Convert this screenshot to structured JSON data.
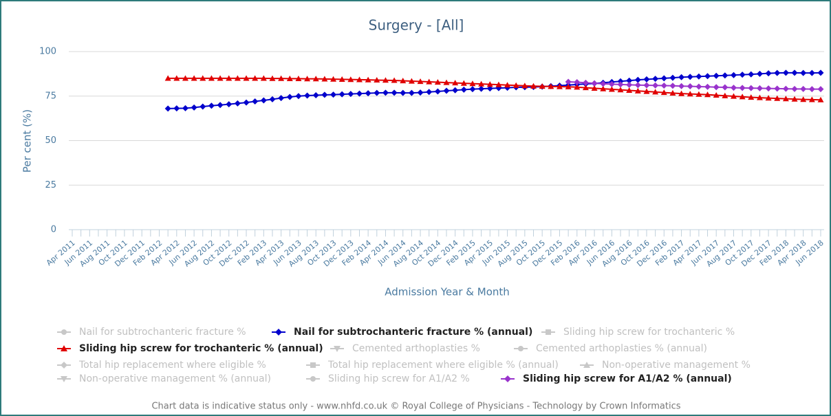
{
  "chart_data": {
    "type": "line",
    "title": "Surgery - [All]",
    "y_label": "Per cent (%)",
    "x_label": "Admission Year & Month",
    "footer": "Chart data is indicative status only - www.nhfd.co.uk © Royal College of Physicians - Technology by Crown Informatics",
    "ylim": [
      0,
      100
    ],
    "yticks": [
      0,
      25,
      50,
      75,
      100
    ],
    "grid": true,
    "categories": [
      "Apr 2011",
      null,
      "Jun 2011",
      null,
      "Aug 2011",
      null,
      "Oct 2011",
      null,
      "Dec 2011",
      null,
      "Feb 2012",
      null,
      "Apr 2012",
      null,
      "Jun 2012",
      null,
      "Aug 2012",
      null,
      "Oct 2012",
      null,
      "Dec 2012",
      null,
      "Feb 2013",
      null,
      "Apr 2013",
      null,
      "Jun 2013",
      null,
      "Aug 2013",
      null,
      "Oct 2013",
      null,
      "Dec 2013",
      null,
      "Feb 2014",
      null,
      "Apr 2014",
      null,
      "Jun 2014",
      null,
      "Aug 2014",
      null,
      "Oct 2014",
      null,
      "Dec 2014",
      null,
      "Feb 2015",
      null,
      "Apr 2015",
      null,
      "Jun 2015",
      null,
      "Aug 2015",
      null,
      "Oct 2015",
      null,
      "Dec 2015",
      null,
      "Feb 2016",
      null,
      "Apr 2016",
      null,
      "Jun 2016",
      null,
      "Aug 2016",
      null,
      "Oct 2016",
      null,
      "Dec 2016",
      null,
      "Feb 2017",
      null,
      "Apr 2017",
      null,
      "Jun 2017",
      null,
      "Aug 2017",
      null,
      "Oct 2017",
      null,
      "Dec 2017",
      null,
      "Feb 2018",
      null,
      "Apr 2018",
      null,
      "Jun 2018"
    ],
    "series": [
      {
        "name": "Nail for subtrochanteric fracture %",
        "color": "#c8c8c8",
        "marker": "circle",
        "visible": false
      },
      {
        "name": "Nail for subtrochanteric fracture % (annual)",
        "color": "#0000cc",
        "marker": "diamond",
        "visible": true,
        "values": [
          null,
          null,
          null,
          null,
          null,
          null,
          null,
          null,
          null,
          null,
          null,
          68.0,
          68.1,
          68.2,
          68.6,
          69.1,
          69.6,
          70.0,
          70.4,
          70.9,
          71.4,
          72.0,
          72.6,
          73.2,
          73.9,
          74.5,
          75.0,
          75.3,
          75.5,
          75.7,
          75.8,
          76.0,
          76.2,
          76.4,
          76.6,
          76.8,
          76.9,
          76.9,
          76.8,
          76.8,
          77.0,
          77.3,
          77.6,
          78.0,
          78.3,
          78.6,
          78.9,
          79.1,
          79.3,
          79.5,
          79.7,
          79.9,
          80.0,
          80.1,
          80.3,
          80.6,
          80.9,
          81.2,
          81.5,
          81.8,
          82.1,
          82.5,
          82.9,
          83.3,
          83.7,
          84.1,
          84.4,
          84.7,
          85.0,
          85.3,
          85.6,
          85.8,
          86.0,
          86.2,
          86.4,
          86.6,
          86.8,
          87.0,
          87.2,
          87.5,
          87.8,
          88.0,
          88.1,
          88.1,
          88.0,
          88.0,
          88.1
        ]
      },
      {
        "name": "Sliding hip screw for trochanteric %",
        "color": "#c8c8c8",
        "marker": "square",
        "visible": false
      },
      {
        "name": "Sliding hip screw for trochanteric % (annual)",
        "color": "#e00000",
        "marker": "triangle",
        "visible": true,
        "values": [
          null,
          null,
          null,
          null,
          null,
          null,
          null,
          null,
          null,
          null,
          null,
          85.0,
          85.0,
          85.0,
          85.0,
          85.0,
          85.0,
          85.0,
          85.0,
          85.0,
          85.0,
          85.0,
          85.0,
          84.9,
          84.9,
          84.8,
          84.8,
          84.7,
          84.7,
          84.6,
          84.5,
          84.4,
          84.3,
          84.2,
          84.1,
          84.0,
          83.9,
          83.8,
          83.6,
          83.4,
          83.2,
          83.0,
          82.8,
          82.6,
          82.4,
          82.2,
          82.0,
          81.8,
          81.6,
          81.4,
          81.2,
          81.0,
          80.8,
          80.6,
          80.5,
          80.4,
          80.3,
          80.2,
          80.0,
          79.7,
          79.4,
          79.1,
          78.8,
          78.5,
          78.2,
          77.9,
          77.6,
          77.3,
          77.0,
          76.7,
          76.4,
          76.2,
          76.0,
          75.8,
          75.5,
          75.2,
          74.9,
          74.6,
          74.3,
          74.1,
          73.9,
          73.7,
          73.5,
          73.3,
          73.1,
          73.0,
          72.9
        ]
      },
      {
        "name": "Cemented arthoplasties %",
        "color": "#c8c8c8",
        "marker": "triangle-down",
        "visible": false
      },
      {
        "name": "Cemented arthoplasties % (annual)",
        "color": "#c8c8c8",
        "marker": "circle",
        "visible": false
      },
      {
        "name": "Total hip replacement where eligible %",
        "color": "#c8c8c8",
        "marker": "diamond",
        "visible": false
      },
      {
        "name": "Total hip replacement where eligible % (annual)",
        "color": "#c8c8c8",
        "marker": "square",
        "visible": false
      },
      {
        "name": "Non-operative management %",
        "color": "#c8c8c8",
        "marker": "triangle",
        "visible": false
      },
      {
        "name": "Non-operative management % (annual)",
        "color": "#c8c8c8",
        "marker": "triangle-down",
        "visible": false
      },
      {
        "name": "Sliding hip screw for A1/A2 %",
        "color": "#c8c8c8",
        "marker": "circle",
        "visible": false
      },
      {
        "name": "Sliding hip screw for A1/A2 % (annual)",
        "color": "#9933cc",
        "marker": "diamond",
        "visible": true,
        "values": [
          null,
          null,
          null,
          null,
          null,
          null,
          null,
          null,
          null,
          null,
          null,
          null,
          null,
          null,
          null,
          null,
          null,
          null,
          null,
          null,
          null,
          null,
          null,
          null,
          null,
          null,
          null,
          null,
          null,
          null,
          null,
          null,
          null,
          null,
          null,
          null,
          null,
          null,
          null,
          null,
          null,
          null,
          null,
          null,
          null,
          null,
          null,
          null,
          null,
          null,
          null,
          null,
          null,
          null,
          null,
          null,
          null,
          83.0,
          82.8,
          82.5,
          82.2,
          81.9,
          81.7,
          81.5,
          81.3,
          81.2,
          81.1,
          81.0,
          80.9,
          80.8,
          80.6,
          80.5,
          80.3,
          80.2,
          80.0,
          79.9,
          79.7,
          79.6,
          79.5,
          79.4,
          79.3,
          79.2,
          79.1,
          79.0,
          79.0,
          78.9,
          78.9
        ]
      }
    ]
  }
}
